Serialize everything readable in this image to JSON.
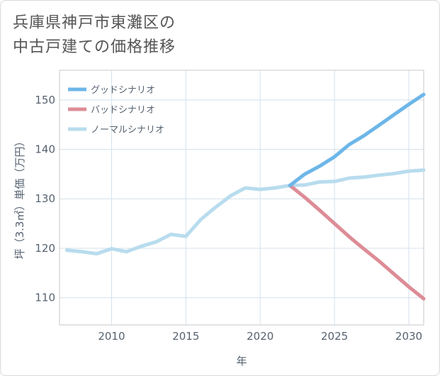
{
  "title": {
    "line1": "兵庫県神戸市東灘区の",
    "line2": "中古戸建ての価格推移"
  },
  "chart_data": {
    "type": "line",
    "xlabel": "年",
    "ylabel": "坪（3.3㎡）単価（万円）",
    "xlim": [
      2006.5,
      2031
    ],
    "ylim": [
      104.5,
      156
    ],
    "x_ticks": [
      2010,
      2015,
      2020,
      2025,
      2030
    ],
    "y_ticks": [
      110,
      120,
      130,
      140,
      150
    ],
    "x_tick_labels": [
      "2010",
      "2015",
      "2020",
      "2025",
      "2030"
    ],
    "y_tick_labels": [
      "110",
      "120",
      "130",
      "140",
      "150"
    ],
    "grid": true,
    "legend_position": "top-left",
    "series": [
      {
        "name": "グッドシナリオ",
        "color": "#6cb6e8",
        "x": [
          2022,
          2023,
          2024,
          2025,
          2026,
          2027,
          2028,
          2029,
          2030,
          2031
        ],
        "values": [
          132.7,
          135.0,
          136.6,
          138.5,
          141.0,
          142.8,
          144.9,
          147.0,
          149.1,
          151.1
        ]
      },
      {
        "name": "バッドシナリオ",
        "color": "#dd8c96",
        "x": [
          2022,
          2023,
          2024,
          2025,
          2026,
          2027,
          2028,
          2029,
          2030,
          2031
        ],
        "values": [
          132.7,
          130.3,
          127.7,
          125.0,
          122.3,
          119.8,
          117.4,
          114.8,
          112.2,
          109.8
        ]
      },
      {
        "name": "ノーマルシナリオ",
        "color": "#b8dcee",
        "x": [
          2007,
          2008,
          2009,
          2010,
          2011,
          2012,
          2013,
          2014,
          2015,
          2016,
          2017,
          2018,
          2019,
          2020,
          2021,
          2022,
          2023,
          2024,
          2025,
          2026,
          2027,
          2028,
          2029,
          2030,
          2031
        ],
        "values": [
          119.6,
          119.3,
          118.9,
          119.9,
          119.3,
          120.4,
          121.3,
          122.8,
          122.4,
          125.8,
          128.3,
          130.6,
          132.2,
          131.9,
          132.2,
          132.7,
          132.8,
          133.4,
          133.5,
          134.2,
          134.4,
          134.8,
          135.1,
          135.6,
          135.8
        ]
      }
    ]
  }
}
